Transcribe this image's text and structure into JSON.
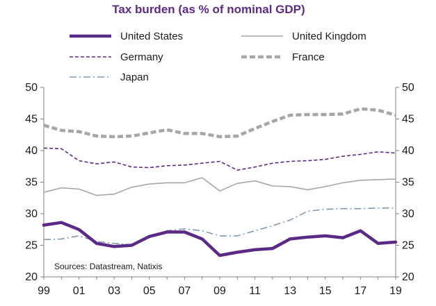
{
  "chart_data": {
    "type": "line",
    "title": "Tax burden (as % of nominal GDP)",
    "source": "Sources: Datastream, Natixis",
    "x": [
      1999,
      2000,
      2001,
      2002,
      2003,
      2004,
      2005,
      2006,
      2007,
      2008,
      2009,
      2010,
      2011,
      2012,
      2013,
      2014,
      2015,
      2016,
      2017,
      2018,
      2019
    ],
    "x_tick_labels": [
      "99",
      "01",
      "03",
      "05",
      "07",
      "09",
      "11",
      "13",
      "15",
      "17",
      "19"
    ],
    "x_tick_values": [
      1999,
      2001,
      2003,
      2005,
      2007,
      2009,
      2011,
      2013,
      2015,
      2017,
      2019
    ],
    "xlim": [
      1999,
      2019
    ],
    "ylim": [
      20,
      50
    ],
    "y_ticks": [
      20,
      25,
      30,
      35,
      40,
      45,
      50
    ],
    "y_axis_both_sides": true,
    "grid": false,
    "legend_position": "top",
    "series": [
      {
        "name": "United States",
        "color": "#5b2a86",
        "style": "solid-thick",
        "values": [
          28.2,
          28.6,
          27.5,
          25.3,
          24.8,
          25.0,
          26.4,
          27.1,
          27.1,
          26.0,
          23.4,
          23.9,
          24.3,
          24.5,
          26.0,
          26.3,
          26.5,
          26.2,
          27.3,
          25.3,
          25.5
        ]
      },
      {
        "name": "United Kingdom",
        "color": "#a6a6a6",
        "style": "solid-thin",
        "values": [
          33.4,
          34.1,
          33.9,
          32.9,
          33.1,
          34.2,
          34.7,
          34.9,
          34.9,
          35.7,
          33.6,
          34.8,
          35.2,
          34.4,
          34.3,
          33.8,
          34.3,
          34.9,
          35.3,
          35.4,
          35.5
        ]
      },
      {
        "name": "Germany",
        "color": "#5b2a86",
        "style": "dashed-thin",
        "values": [
          40.4,
          40.3,
          38.4,
          37.9,
          38.2,
          37.4,
          37.3,
          37.6,
          37.7,
          38.0,
          38.3,
          36.9,
          37.4,
          38.0,
          38.3,
          38.4,
          38.6,
          39.1,
          39.4,
          39.8,
          39.6
        ]
      },
      {
        "name": "France",
        "color": "#a6a6a6",
        "style": "dashed-thick",
        "values": [
          44.0,
          43.2,
          43.0,
          42.3,
          42.2,
          42.3,
          42.8,
          43.3,
          42.7,
          42.7,
          42.2,
          42.3,
          43.5,
          44.6,
          45.6,
          45.7,
          45.7,
          45.8,
          46.6,
          46.4,
          45.6
        ]
      },
      {
        "name": "Japan",
        "color": "#8497b0",
        "style": "dashdot-thin",
        "values": [
          25.9,
          26.0,
          26.5,
          25.6,
          25.3,
          25.1,
          26.2,
          27.3,
          27.6,
          27.3,
          26.5,
          26.5,
          27.3,
          28.1,
          29.0,
          30.4,
          30.7,
          30.8,
          30.8,
          30.9,
          30.9
        ]
      }
    ]
  }
}
